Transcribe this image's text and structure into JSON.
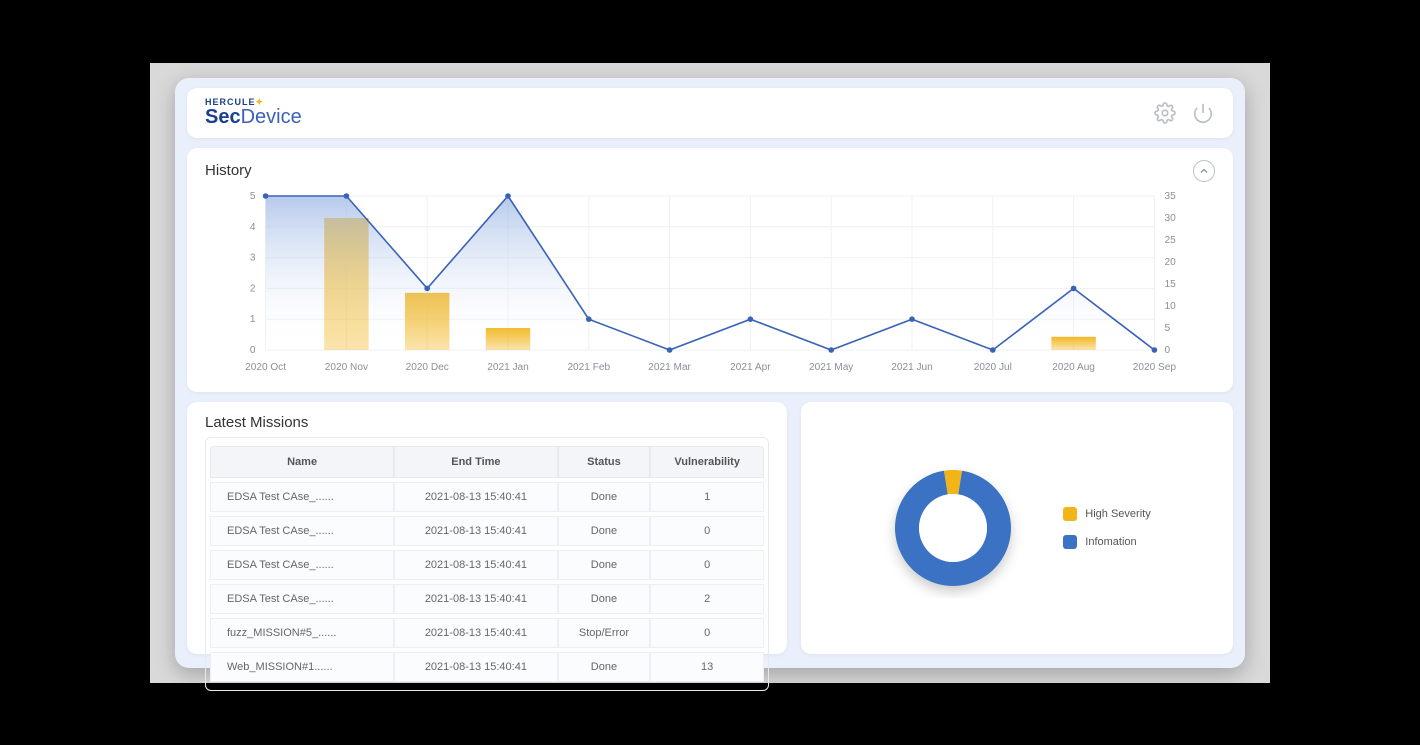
{
  "brand": {
    "line1_left": "HERCULE",
    "line1_bolt": "✦",
    "line2_left": "Sec",
    "line2_right": "Device"
  },
  "colors": {
    "accent_blue": "#3a62b5",
    "accent_orange": "#f2b418",
    "panel_bg": "#ffffff",
    "app_bg": "#eaf0fb",
    "grid": "#eef1f5",
    "text_muted": "#8a8f99"
  },
  "history": {
    "title": "History",
    "type": "combo-bar-line",
    "categories": [
      "2020 Oct",
      "2020 Nov",
      "2020 Dec",
      "2021 Jan",
      "2021 Feb",
      "2021 Mar",
      "2021 Apr",
      "2021 May",
      "2021 Jun",
      "2020 Jul",
      "2020 Aug",
      "2020 Sep"
    ],
    "line_values": [
      5,
      5,
      2,
      5,
      1,
      0,
      1,
      0,
      1,
      0,
      2,
      0
    ],
    "bar_values": [
      0,
      30,
      13,
      5,
      0,
      0,
      0,
      0,
      0,
      0,
      3,
      0
    ],
    "left_axis": {
      "min": 0,
      "max": 5,
      "step": 1,
      "ticks": [
        0,
        1,
        2,
        3,
        4,
        5
      ]
    },
    "right_axis": {
      "min": 0,
      "max": 35,
      "step": 5,
      "ticks": [
        0,
        5,
        10,
        15,
        20,
        25,
        30,
        35
      ]
    },
    "line_color": "#3a62b5",
    "bar_color": "#f2b418",
    "area_fill_top": "#9db8e6",
    "area_fill_bottom": "#ffffff",
    "bar_width_ratio": 0.55,
    "grid_color": "#eef1f5",
    "label_fontsize": 10
  },
  "missions": {
    "title": "Latest Missions",
    "columns": [
      "Name",
      "End Time",
      "Status",
      "Vulnerability"
    ],
    "rows": [
      [
        "EDSA Test CAse_......",
        "2021-08-13  15:40:41",
        "Done",
        "1"
      ],
      [
        "EDSA Test CAse_......",
        "2021-08-13  15:40:41",
        "Done",
        "0"
      ],
      [
        "EDSA Test CAse_......",
        "2021-08-13  15:40:41",
        "Done",
        "0"
      ],
      [
        "EDSA Test CAse_......",
        "2021-08-13  15:40:41",
        "Done",
        "2"
      ],
      [
        "fuzz_MISSION#5_......",
        "2021-08-13  15:40:41",
        "Stop/Error",
        "0"
      ],
      [
        "Web_MISSION#1......",
        "2021-08-13  15:40:41",
        "Done",
        "13"
      ]
    ]
  },
  "donut": {
    "type": "donut",
    "slices": [
      {
        "label": "High Severity",
        "value": 5,
        "color": "#f2b418"
      },
      {
        "label": "Infomation",
        "value": 95,
        "color": "#3a72c4"
      }
    ],
    "legend": [
      {
        "label": "High Severity",
        "color": "#f2b418"
      },
      {
        "label": "Infomation",
        "color": "#3a72c4"
      }
    ],
    "outer_radius": 58,
    "inner_radius": 34,
    "center_fill": "#ffffff",
    "shadow": "0 6px 14px rgba(0,0,0,0.18)"
  }
}
